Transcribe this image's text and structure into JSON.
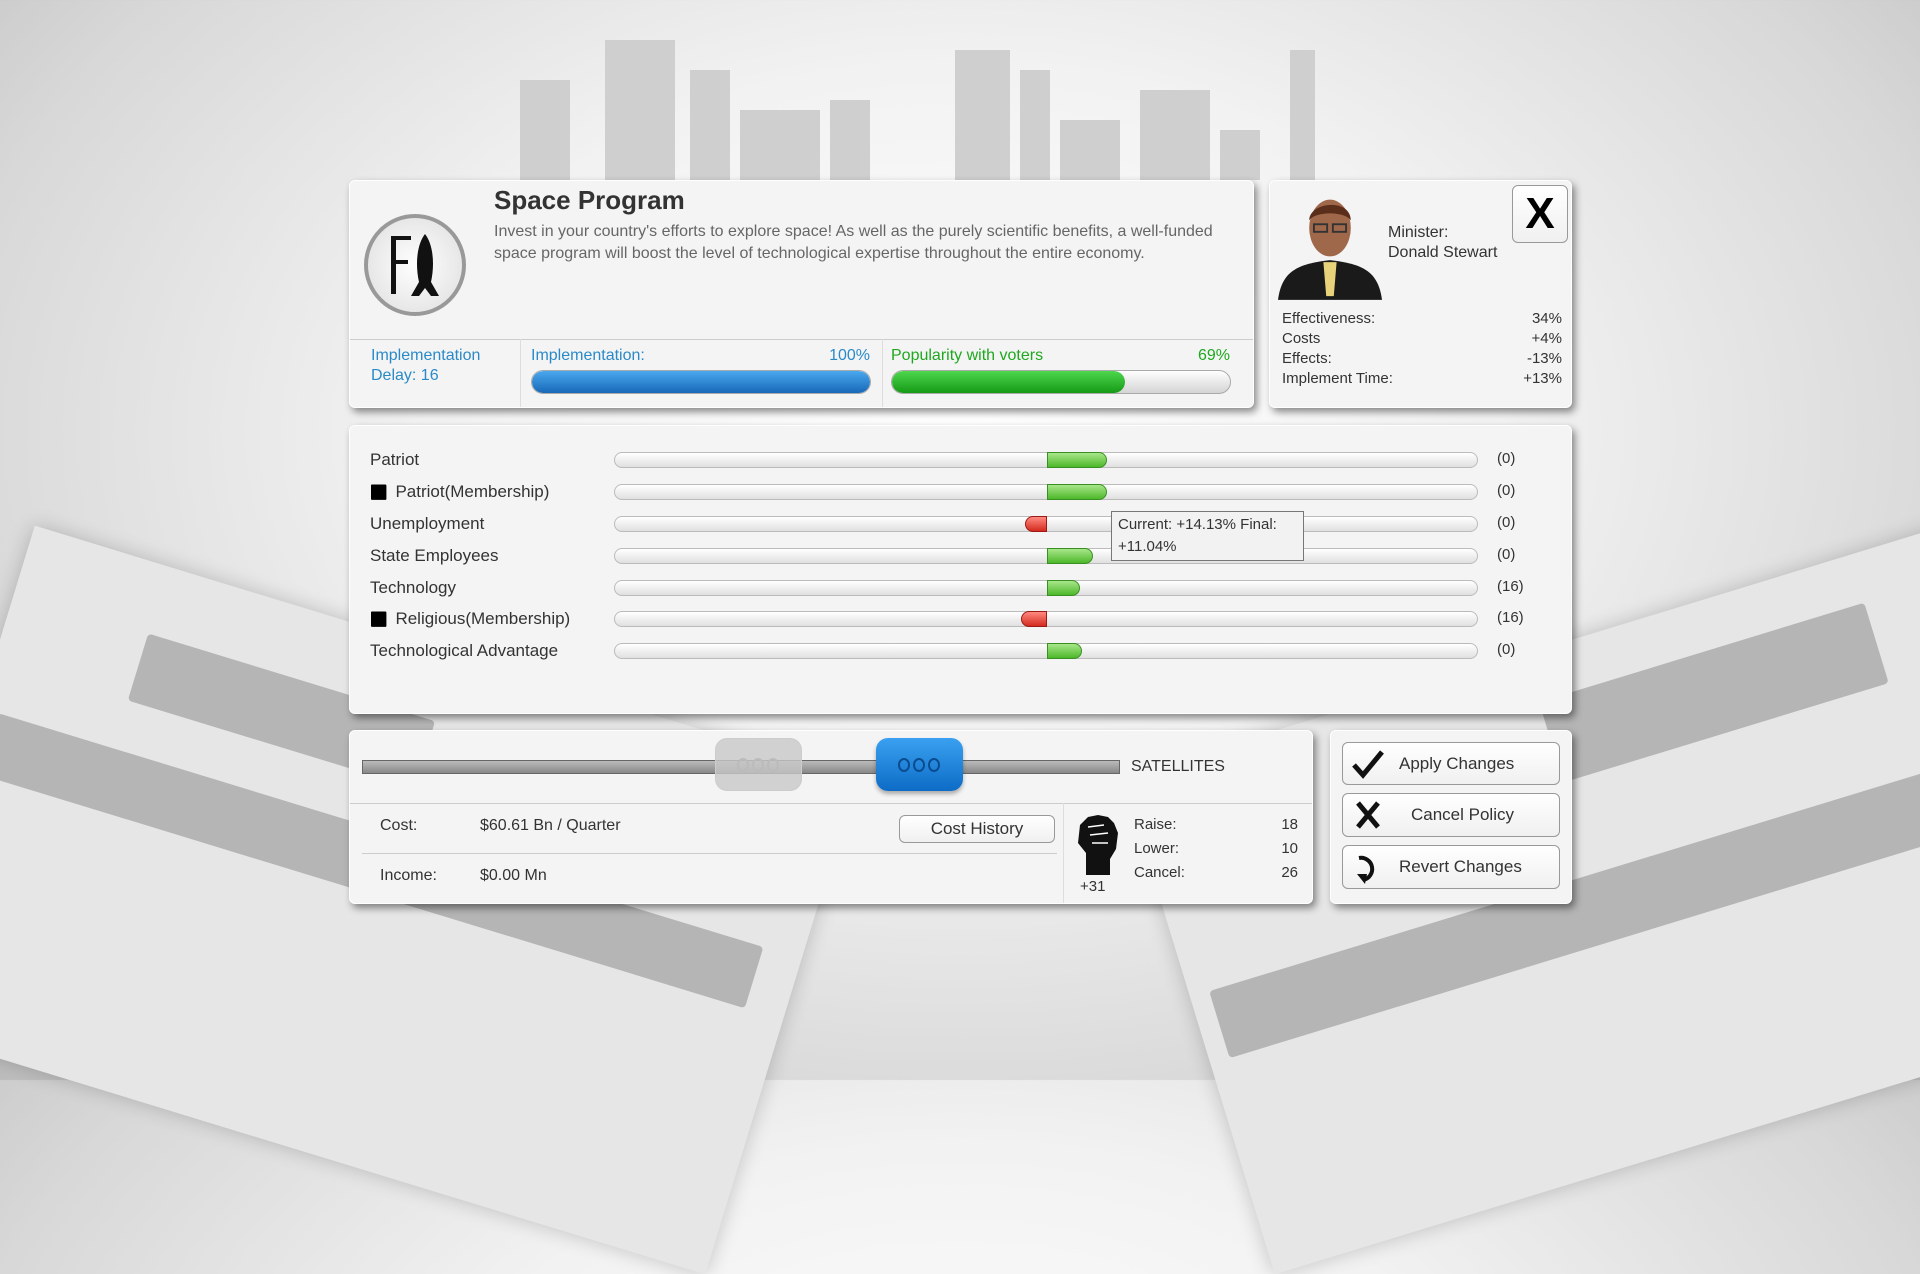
{
  "policy": {
    "title": "Space Program",
    "description": "Invest in your country's efforts to explore space! As well as the purely scientific benefits, a well-funded space program will boost the level of technological expertise throughout the entire economy.",
    "icon": "rocket-icon",
    "implementation_delay_label": "Implementation",
    "implementation_delay_value": "Delay: 16",
    "implementation_label": "Implementation:",
    "implementation_value": "100%",
    "implementation_percent": 100,
    "popularity_label": "Popularity with voters",
    "popularity_value": "69%",
    "popularity_percent": 69,
    "colors": {
      "implementation": "#1f7fcf",
      "popularity": "#22b022"
    }
  },
  "minister": {
    "label": "Minister:",
    "name": "Donald Stewart",
    "close_label": "X",
    "stats": [
      {
        "label": "Effectiveness:",
        "value": "34%"
      },
      {
        "label": "Costs",
        "value": "+4%"
      },
      {
        "label": "Effects:",
        "value": "-13%"
      },
      {
        "label": "Implement Time:",
        "value": "+13%"
      }
    ]
  },
  "effects": [
    {
      "label": "Patriot",
      "membership": false,
      "direction": "positive",
      "magnitude": 0.07,
      "value": "(0)"
    },
    {
      "label": "Patriot(Membership)",
      "membership": true,
      "direction": "positive",
      "magnitude": 0.07,
      "value": "(0)"
    },
    {
      "label": "Unemployment",
      "membership": false,
      "direction": "negative",
      "magnitude": 0.025,
      "value": "(0)"
    },
    {
      "label": "State Employees",
      "membership": false,
      "direction": "positive",
      "magnitude": 0.053,
      "value": "(0)"
    },
    {
      "label": "Technology",
      "membership": false,
      "direction": "positive",
      "magnitude": 0.038,
      "value": "(16)"
    },
    {
      "label": "Religious(Membership)",
      "membership": true,
      "direction": "negative",
      "magnitude": 0.03,
      "value": "(16)"
    },
    {
      "label": "Technological Advantage",
      "membership": false,
      "direction": "positive",
      "magnitude": 0.041,
      "value": "(0)"
    }
  ],
  "tooltip": {
    "line1": "Current: +14.13% Final:",
    "line2": "+11.04%"
  },
  "slider": {
    "label": "SATELLITES",
    "current_position": 0.84,
    "previous_position": 0.6
  },
  "finance": {
    "cost_label": "Cost:",
    "cost_value": "$60.61 Bn / Quarter",
    "income_label": "Income:",
    "income_value": "$0.00 Mn",
    "cost_history_label": "Cost History"
  },
  "political_capital": {
    "icon": "fist-icon",
    "value": "+31",
    "rows": [
      {
        "label": "Raise:",
        "value": "18"
      },
      {
        "label": "Lower:",
        "value": "10"
      },
      {
        "label": "Cancel:",
        "value": "26"
      }
    ]
  },
  "actions": [
    {
      "label": "Apply Changes",
      "icon": "checkmark-icon"
    },
    {
      "label": "Cancel Policy",
      "icon": "x-icon"
    },
    {
      "label": "Revert Changes",
      "icon": "revert-icon"
    }
  ]
}
